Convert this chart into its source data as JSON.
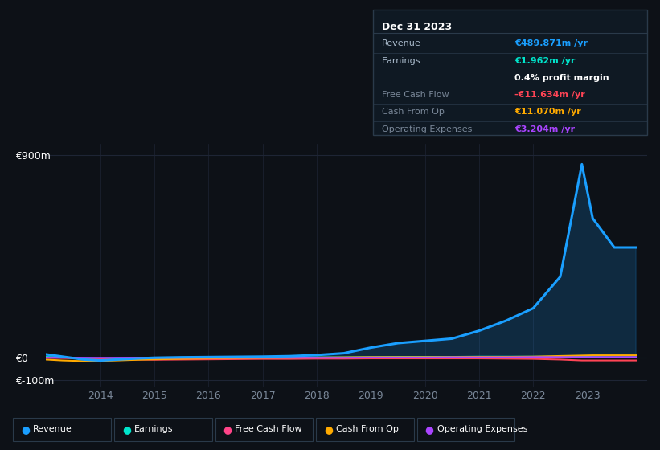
{
  "background_color": "#0d1117",
  "chart_bg_color": "#0d1117",
  "grid_color": "#1e2535",
  "text_color": "#ffffff",
  "dim_text_color": "#7a8899",
  "years": [
    2013.0,
    2013.3,
    2013.7,
    2014.0,
    2014.3,
    2014.7,
    2015.0,
    2015.5,
    2016.0,
    2016.5,
    2017.0,
    2017.5,
    2018.0,
    2018.5,
    2019.0,
    2019.5,
    2020.0,
    2020.5,
    2021.0,
    2021.5,
    2022.0,
    2022.5,
    2022.9,
    2023.1,
    2023.5,
    2023.9
  ],
  "revenue": [
    15,
    5,
    -8,
    -12,
    -8,
    -3,
    0,
    2,
    3,
    4,
    5,
    7,
    12,
    20,
    45,
    65,
    75,
    85,
    120,
    165,
    220,
    360,
    860,
    620,
    490,
    490
  ],
  "earnings": [
    4,
    1,
    -2,
    -3,
    -2,
    0,
    0,
    0,
    1,
    1,
    1,
    1,
    2,
    2,
    3,
    4,
    4,
    4,
    5,
    5,
    5,
    5,
    5,
    3,
    2,
    2
  ],
  "free_cash_flow": [
    0,
    -1,
    -3,
    -5,
    -7,
    -8,
    -9,
    -8,
    -7,
    -6,
    -5,
    -5,
    -4,
    -4,
    -3,
    -3,
    -3,
    -3,
    -3,
    -4,
    -5,
    -8,
    -12,
    -12,
    -12,
    -12
  ],
  "cash_from_op": [
    -8,
    -12,
    -15,
    -14,
    -12,
    -9,
    -7,
    -5,
    -3,
    -2,
    -1,
    0,
    1,
    2,
    3,
    3,
    3,
    3,
    4,
    4,
    5,
    8,
    10,
    11,
    11,
    11
  ],
  "operating_expenses": [
    0,
    0,
    0,
    0,
    0,
    0,
    0,
    0,
    0,
    0,
    0,
    0,
    0,
    0,
    1,
    1,
    1,
    2,
    2,
    2,
    3,
    3,
    3,
    3,
    3,
    3
  ],
  "revenue_color": "#1a9fff",
  "earnings_color": "#00e5cc",
  "free_cash_flow_color": "#ff4455",
  "cash_from_op_color": "#ffaa00",
  "operating_expenses_color": "#aa44ff",
  "ylim": [
    -130,
    950
  ],
  "yticks": [
    -100,
    0,
    900
  ],
  "ytick_labels": [
    "€-100m",
    "€0",
    "€900m"
  ],
  "xtick_years": [
    2014,
    2015,
    2016,
    2017,
    2018,
    2019,
    2020,
    2021,
    2022,
    2023
  ],
  "tooltip_title": "Dec 31 2023",
  "tooltip_bg": "#0f1923",
  "tooltip_border": "#2a3a4a",
  "tooltip_rows": [
    {
      "label": "Revenue",
      "value": "€489.871m /yr",
      "value_color": "#1a9fff",
      "dim": false
    },
    {
      "label": "Earnings",
      "value": "€1.962m /yr",
      "value_color": "#00e5cc",
      "dim": false
    },
    {
      "label": "",
      "value": "0.4% profit margin",
      "value_color": "#ffffff",
      "dim": false
    },
    {
      "label": "Free Cash Flow",
      "value": "-€11.634m /yr",
      "value_color": "#ff4455",
      "dim": true
    },
    {
      "label": "Cash From Op",
      "value": "€11.070m /yr",
      "value_color": "#ffaa00",
      "dim": true
    },
    {
      "label": "Operating Expenses",
      "value": "€3.204m /yr",
      "value_color": "#aa44ff",
      "dim": true
    }
  ],
  "legend_items": [
    {
      "label": "Revenue",
      "color": "#1a9fff"
    },
    {
      "label": "Earnings",
      "color": "#00e5cc"
    },
    {
      "label": "Free Cash Flow",
      "color": "#ff4488"
    },
    {
      "label": "Cash From Op",
      "color": "#ffaa00"
    },
    {
      "label": "Operating Expenses",
      "color": "#aa44ff"
    }
  ]
}
